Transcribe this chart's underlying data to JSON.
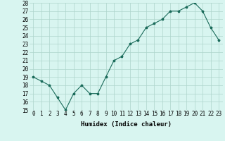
{
  "x": [
    0,
    1,
    2,
    3,
    4,
    5,
    6,
    7,
    8,
    9,
    10,
    11,
    12,
    13,
    14,
    15,
    16,
    17,
    18,
    19,
    20,
    21,
    22,
    23
  ],
  "y": [
    19,
    18.5,
    18,
    16.5,
    15,
    17,
    18,
    17,
    17,
    19,
    21,
    21.5,
    23,
    23.5,
    25,
    25.5,
    26,
    27,
    27,
    27.5,
    28,
    27,
    25,
    23.5
  ],
  "title": "",
  "xlabel": "Humidex (Indice chaleur)",
  "ylabel": "",
  "ylim": [
    15,
    28
  ],
  "yticks": [
    15,
    16,
    17,
    18,
    19,
    20,
    21,
    22,
    23,
    24,
    25,
    26,
    27,
    28
  ],
  "xticks": [
    0,
    1,
    2,
    3,
    4,
    5,
    6,
    7,
    8,
    9,
    10,
    11,
    12,
    13,
    14,
    15,
    16,
    17,
    18,
    19,
    20,
    21,
    22,
    23
  ],
  "line_color": "#1a6b5a",
  "marker_color": "#1a6b5a",
  "bg_color": "#d8f5f0",
  "grid_color": "#aed4cc",
  "axis_fontsize": 6.5,
  "tick_fontsize": 5.5
}
